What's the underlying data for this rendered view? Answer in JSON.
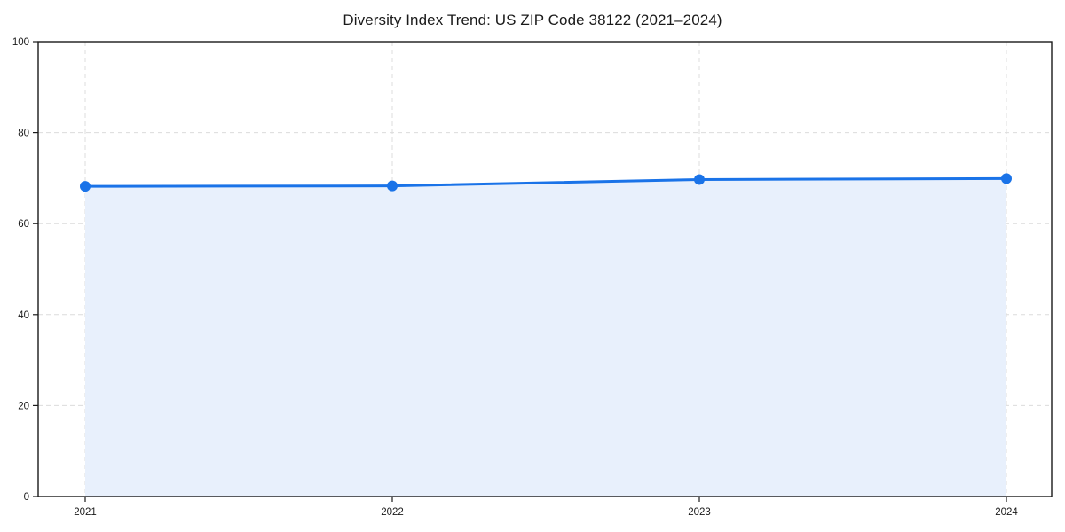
{
  "chart_data": {
    "type": "area",
    "title": "Diversity Index Trend: US ZIP Code 38122 (2021–2024)",
    "categories": [
      "2021",
      "2022",
      "2023",
      "2024"
    ],
    "x": [
      2021,
      2022,
      2023,
      2024
    ],
    "series": [
      {
        "name": "Diversity Index",
        "values": [
          68.2,
          68.3,
          69.7,
          69.9
        ]
      }
    ],
    "xlabel": "",
    "ylabel": "",
    "ylim": [
      0,
      100
    ],
    "yticks": [
      0,
      20,
      40,
      60,
      80,
      100
    ],
    "grid": "both",
    "grid_style": "dashed",
    "legend_position": "none",
    "colors": {
      "line": "#1a73e8",
      "marker": "#1a73e8",
      "fill": "#e8f0fc",
      "grid": "#dcdcdc",
      "spine": "#1a1a1a",
      "tick_text": "#1a1a1a",
      "background": "#ffffff"
    }
  }
}
